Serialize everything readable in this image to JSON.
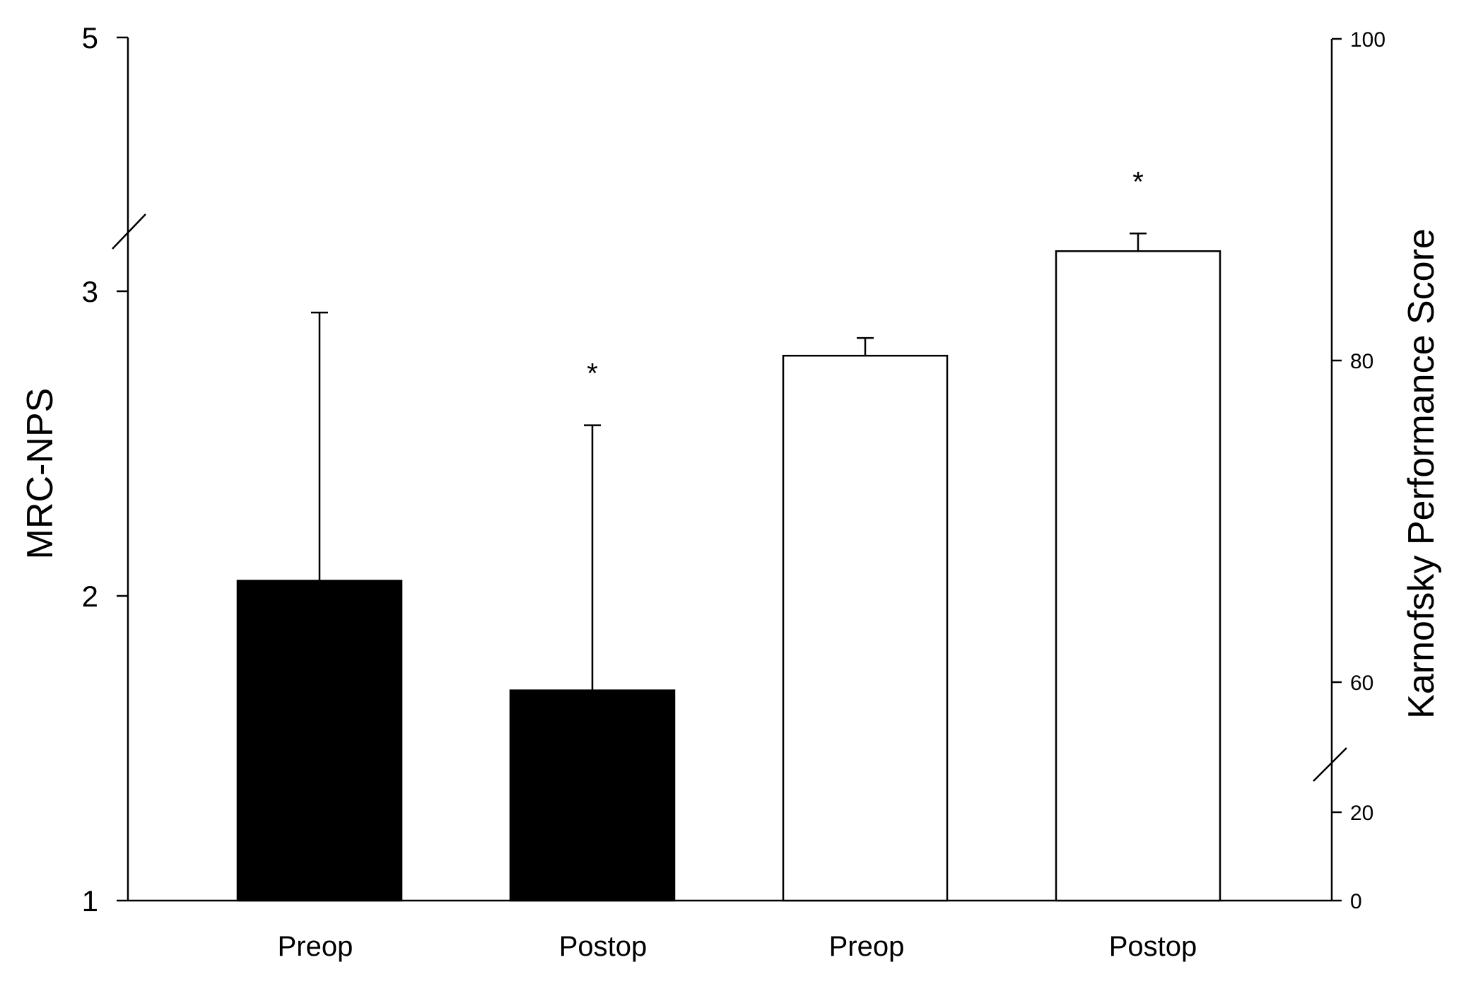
{
  "chart_data": {
    "type": "bar",
    "categories": [
      "Preop",
      "Postop",
      "Preop",
      "Postop"
    ],
    "series": [
      {
        "name": "",
        "axis": "left",
        "color": "#000000",
        "values": [
          2.05,
          1.69,
          null,
          null
        ],
        "error_upper": [
          2.93,
          2.56,
          null,
          null
        ],
        "significance": [
          "",
          "*",
          "",
          ""
        ]
      },
      {
        "name": "",
        "axis": "right",
        "color": "#ffffff",
        "values": [
          null,
          null,
          80.3,
          86.8
        ],
        "error_upper": [
          null,
          null,
          81.4,
          87.9
        ],
        "significance": [
          "",
          "",
          "",
          "*"
        ]
      }
    ],
    "left_axis": {
      "label": "MRC-NPS",
      "ticks": [
        1,
        2,
        3,
        5
      ],
      "tick_labels": [
        "1",
        "2",
        "3",
        "5"
      ],
      "range": [
        1,
        5
      ],
      "broken_between": [
        3,
        5
      ]
    },
    "right_axis": {
      "label": "Karnofsky Performance Score",
      "ticks": [
        0,
        20,
        60,
        80,
        100
      ],
      "tick_labels": [
        "0",
        "20",
        "60",
        "80",
        "100"
      ],
      "range": [
        0,
        100
      ],
      "broken_between": [
        20,
        60
      ]
    },
    "grid": false,
    "legend": "none"
  }
}
